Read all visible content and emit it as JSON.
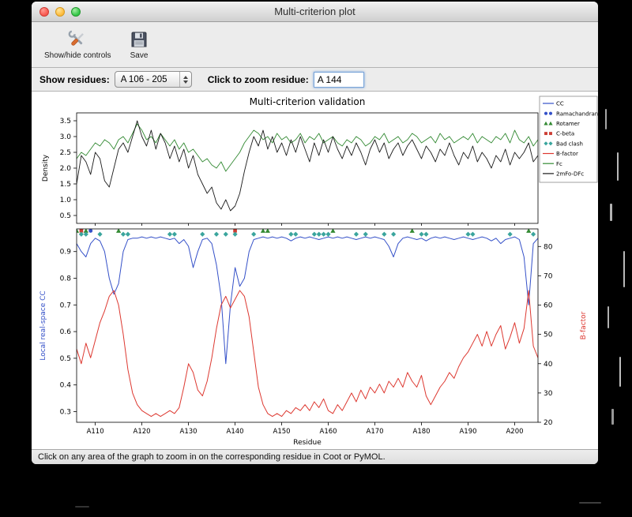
{
  "window": {
    "title": "Multi-criterion plot"
  },
  "toolbar": {
    "show_hide_label": "Show/hide controls",
    "save_label": "Save"
  },
  "controls": {
    "show_residues_label": "Show residues:",
    "range_value": "A 106 - 205",
    "zoom_label": "Click to zoom residue:",
    "zoom_value": "A 144"
  },
  "status": {
    "text": "Click on any area of the graph to zoom in on the corresponding residue in Coot or PyMOL."
  },
  "chart_data": {
    "type": "line",
    "title": "Multi-criterion validation",
    "xlabel": "Residue",
    "x_start": 106,
    "x_end": 205,
    "top_plot": {
      "ylabel": "Density",
      "ylim": [
        0.25,
        3.75
      ],
      "yticks": [
        0.5,
        1.0,
        1.5,
        2.0,
        2.5,
        3.0,
        3.5
      ],
      "series": [
        {
          "name": "Fc",
          "color": "#338a33",
          "values": [
            2.3,
            2.5,
            2.4,
            2.6,
            2.8,
            2.7,
            2.9,
            2.8,
            2.6,
            2.9,
            3.0,
            2.8,
            3.1,
            3.4,
            3.2,
            2.9,
            3.0,
            2.8,
            3.1,
            2.9,
            2.7,
            2.9,
            2.6,
            2.8,
            2.5,
            2.6,
            2.4,
            2.2,
            2.3,
            2.1,
            2.0,
            2.2,
            1.9,
            2.1,
            2.3,
            2.5,
            2.8,
            3.0,
            3.2,
            3.1,
            2.9,
            3.0,
            2.8,
            3.1,
            2.9,
            3.0,
            2.8,
            2.9,
            3.1,
            2.8,
            3.0,
            2.9,
            3.1,
            2.8,
            2.9,
            3.0,
            2.8,
            2.7,
            2.9,
            2.8,
            3.0,
            2.9,
            2.7,
            2.8,
            3.0,
            2.9,
            3.1,
            2.8,
            2.9,
            3.0,
            2.8,
            2.9,
            3.1,
            3.0,
            2.8,
            2.9,
            3.0,
            2.8,
            3.1,
            2.9,
            3.0,
            2.8,
            2.9,
            3.0,
            2.9,
            3.1,
            2.8,
            3.0,
            2.9,
            2.8,
            3.0,
            2.9,
            3.1,
            2.8,
            3.2,
            2.9,
            2.8,
            3.0,
            2.7,
            2.9
          ]
        },
        {
          "name": "2mFo-DFc",
          "color": "#1a1a1a",
          "values": [
            1.5,
            2.4,
            2.2,
            1.8,
            2.5,
            2.3,
            1.6,
            1.4,
            2.0,
            2.6,
            2.8,
            2.5,
            3.0,
            3.5,
            3.0,
            2.7,
            3.2,
            2.6,
            3.1,
            2.8,
            2.3,
            2.7,
            2.2,
            2.6,
            2.0,
            2.4,
            1.8,
            1.5,
            1.2,
            1.4,
            0.9,
            0.7,
            1.0,
            0.65,
            0.8,
            1.2,
            1.9,
            2.5,
            3.0,
            2.7,
            3.2,
            2.6,
            3.0,
            2.5,
            2.8,
            2.4,
            2.9,
            2.5,
            3.0,
            2.6,
            2.2,
            2.8,
            2.4,
            2.9,
            2.5,
            3.0,
            2.6,
            2.3,
            2.7,
            2.4,
            2.8,
            2.5,
            2.1,
            2.6,
            2.9,
            2.5,
            2.8,
            2.3,
            2.6,
            2.8,
            2.4,
            2.7,
            2.9,
            2.6,
            2.3,
            2.7,
            2.5,
            2.2,
            2.6,
            2.4,
            2.8,
            2.4,
            2.1,
            2.5,
            2.3,
            2.7,
            2.2,
            2.5,
            2.3,
            2.0,
            2.4,
            2.2,
            2.6,
            2.1,
            2.5,
            2.3,
            2.5,
            2.8,
            2.2,
            2.4
          ]
        }
      ]
    },
    "bottom_plot": {
      "ylabel_left": "Local real-space CC",
      "ylabel_right": "B-factor",
      "ylim_left": [
        0.26,
        0.985
      ],
      "yticks_left": [
        0.3,
        0.4,
        0.5,
        0.6,
        0.7,
        0.8,
        0.9
      ],
      "ylim_right": [
        20,
        86
      ],
      "yticks_right": [
        20,
        30,
        40,
        50,
        60,
        70,
        80
      ],
      "xticks": [
        "A110",
        "A120",
        "A130",
        "A140",
        "A150",
        "A160",
        "A170",
        "A180",
        "A190",
        "A200"
      ],
      "series": [
        {
          "name": "CC",
          "axis": "left",
          "color": "#3450c8",
          "values": [
            0.93,
            0.9,
            0.88,
            0.93,
            0.95,
            0.94,
            0.9,
            0.8,
            0.74,
            0.78,
            0.9,
            0.945,
            0.95,
            0.95,
            0.955,
            0.95,
            0.955,
            0.95,
            0.955,
            0.95,
            0.945,
            0.95,
            0.93,
            0.945,
            0.92,
            0.84,
            0.9,
            0.945,
            0.95,
            0.93,
            0.85,
            0.73,
            0.48,
            0.7,
            0.84,
            0.77,
            0.8,
            0.9,
            0.945,
            0.95,
            0.955,
            0.95,
            0.955,
            0.95,
            0.955,
            0.95,
            0.94,
            0.95,
            0.955,
            0.95,
            0.955,
            0.95,
            0.945,
            0.95,
            0.955,
            0.95,
            0.955,
            0.95,
            0.955,
            0.95,
            0.945,
            0.95,
            0.955,
            0.95,
            0.955,
            0.95,
            0.945,
            0.92,
            0.88,
            0.93,
            0.95,
            0.955,
            0.95,
            0.945,
            0.95,
            0.94,
            0.95,
            0.955,
            0.95,
            0.955,
            0.95,
            0.945,
            0.95,
            0.955,
            0.95,
            0.945,
            0.95,
            0.955,
            0.95,
            0.94,
            0.95,
            0.93,
            0.945,
            0.95,
            0.955,
            0.945,
            0.88,
            0.7,
            0.93,
            0.95
          ]
        },
        {
          "name": "B-factor",
          "axis": "right",
          "color": "#dd3830",
          "values": [
            45,
            40,
            47,
            42,
            48,
            54,
            58,
            63,
            65,
            60,
            50,
            38,
            30,
            26,
            24,
            23,
            22,
            23,
            22,
            23,
            24,
            23,
            25,
            32,
            40,
            37,
            31,
            29,
            34,
            42,
            52,
            60,
            63,
            59,
            62,
            65,
            63,
            56,
            44,
            32,
            26,
            23,
            22,
            23,
            22,
            24,
            23,
            25,
            24,
            26,
            24,
            27,
            25,
            28,
            24,
            23,
            26,
            24,
            27,
            30,
            27,
            31,
            28,
            32,
            30,
            33,
            30,
            34,
            32,
            35,
            32,
            37,
            34,
            32,
            36,
            29,
            26,
            29,
            32,
            34,
            37,
            35,
            39,
            42,
            44,
            47,
            50,
            46,
            51,
            46,
            50,
            53,
            45,
            49,
            54,
            47,
            52,
            65,
            46,
            42
          ]
        }
      ],
      "markers": [
        {
          "name": "Ramachandran",
          "shape": "circle",
          "color": "#3450c8",
          "y": 0.978,
          "residues": [
            109
          ]
        },
        {
          "name": "Rotamer",
          "shape": "triangle",
          "color": "#338a33",
          "y": 0.978,
          "residues": [
            106,
            108,
            115,
            146,
            147,
            161,
            178,
            203
          ]
        },
        {
          "name": "C-beta",
          "shape": "square",
          "color": "#cc3d33",
          "y": 0.978,
          "residues": [
            107,
            140
          ]
        },
        {
          "name": "Bad clash",
          "shape": "diamond",
          "color": "#3aa59d",
          "y": 0.965,
          "residues": [
            107,
            108,
            111,
            116,
            117,
            126,
            127,
            133,
            136,
            138,
            140,
            144,
            152,
            153,
            157,
            158,
            159,
            160,
            166,
            168,
            172,
            174,
            180,
            181,
            190,
            191,
            199,
            204
          ]
        }
      ]
    },
    "legend": [
      {
        "label": "CC",
        "type": "line",
        "color": "#3450c8"
      },
      {
        "label": "Ramachandran",
        "type": "circles",
        "color": "#3450c8"
      },
      {
        "label": "Rotamer",
        "type": "triangles",
        "color": "#338a33"
      },
      {
        "label": "C-beta",
        "type": "squares",
        "color": "#cc3d33"
      },
      {
        "label": "Bad clash",
        "type": "diamonds",
        "color": "#3aa59d"
      },
      {
        "label": "B-factor",
        "type": "line",
        "color": "#dd3830"
      },
      {
        "label": "Fc",
        "type": "line",
        "color": "#338a33"
      },
      {
        "label": "2mFo-DFc",
        "type": "line",
        "color": "#1a1a1a"
      }
    ]
  }
}
